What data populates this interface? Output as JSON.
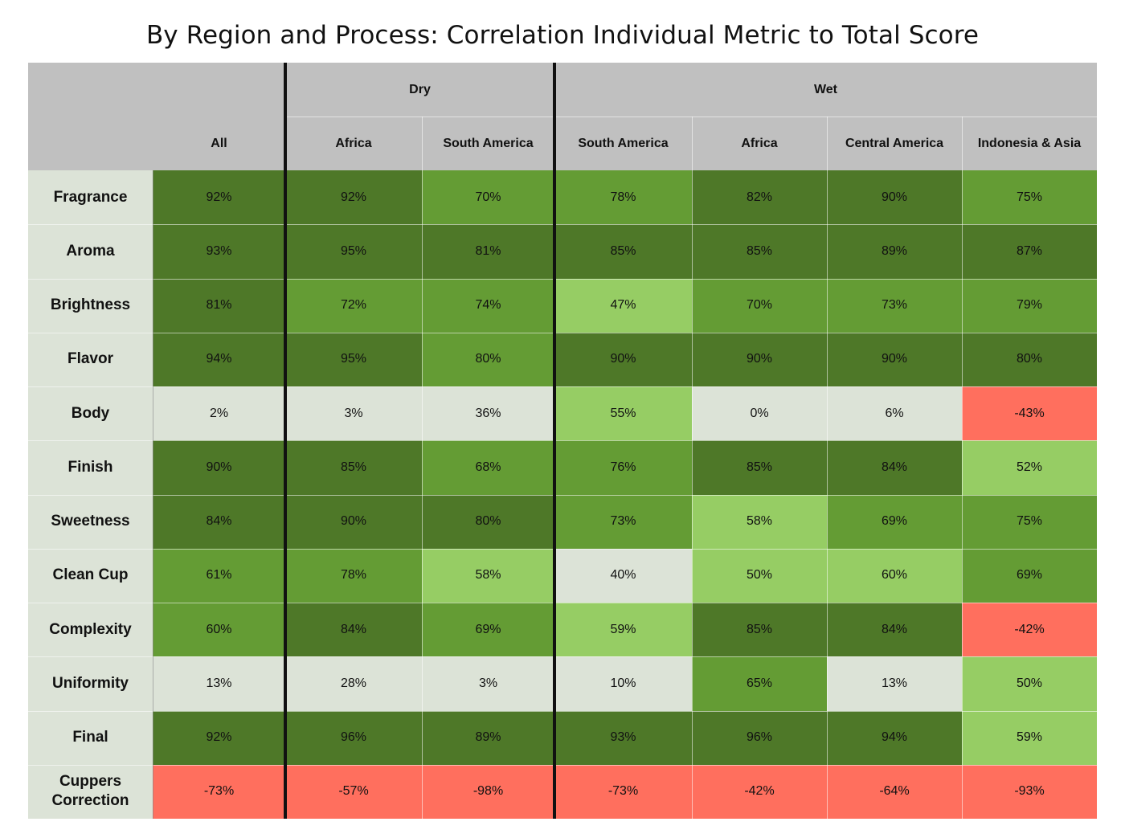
{
  "chart_data": {
    "type": "table",
    "title": "By Region and Process: Correlation Individual Metric to Total Score",
    "column_groups": [
      {
        "label": "",
        "span": 1
      },
      {
        "label": "Dry",
        "span": 2
      },
      {
        "label": "Wet",
        "span": 4
      }
    ],
    "columns": [
      "All",
      "Africa",
      "South America",
      "South America",
      "Africa",
      "Central America",
      "Indonesia & Asia"
    ],
    "rows": [
      {
        "label": "Fragrance",
        "values": [
          "92%",
          "92%",
          "70%",
          "78%",
          "82%",
          "90%",
          "75%"
        ]
      },
      {
        "label": "Aroma",
        "values": [
          "93%",
          "95%",
          "81%",
          "85%",
          "85%",
          "89%",
          "87%"
        ]
      },
      {
        "label": "Brightness",
        "values": [
          "81%",
          "72%",
          "74%",
          "47%",
          "70%",
          "73%",
          "79%"
        ]
      },
      {
        "label": "Flavor",
        "values": [
          "94%",
          "95%",
          "80%",
          "90%",
          "90%",
          "90%",
          "80%"
        ]
      },
      {
        "label": "Body",
        "values": [
          "2%",
          "3%",
          "36%",
          "55%",
          "0%",
          "6%",
          "-43%"
        ]
      },
      {
        "label": "Finish",
        "values": [
          "90%",
          "85%",
          "68%",
          "76%",
          "85%",
          "84%",
          "52%"
        ]
      },
      {
        "label": "Sweetness",
        "values": [
          "84%",
          "90%",
          "80%",
          "73%",
          "58%",
          "69%",
          "75%"
        ]
      },
      {
        "label": "Clean Cup",
        "values": [
          "61%",
          "78%",
          "58%",
          "40%",
          "50%",
          "60%",
          "69%"
        ]
      },
      {
        "label": "Complexity",
        "values": [
          "60%",
          "84%",
          "69%",
          "59%",
          "85%",
          "84%",
          "-42%"
        ]
      },
      {
        "label": "Uniformity",
        "values": [
          "13%",
          "28%",
          "3%",
          "10%",
          "65%",
          "13%",
          "50%"
        ]
      },
      {
        "label": "Final",
        "values": [
          "92%",
          "96%",
          "89%",
          "93%",
          "96%",
          "94%",
          "59%"
        ]
      },
      {
        "label": "Cuppers Correction",
        "values": [
          "-73%",
          "-57%",
          "-98%",
          "-73%",
          "-42%",
          "-64%",
          "-93%"
        ]
      }
    ],
    "cell_shades": [
      [
        "dark",
        "dark",
        "mid",
        "mid",
        "dark",
        "dark",
        "mid"
      ],
      [
        "dark",
        "dark",
        "dark",
        "dark",
        "dark",
        "dark",
        "dark"
      ],
      [
        "dark",
        "mid",
        "mid",
        "light",
        "mid",
        "mid",
        "mid"
      ],
      [
        "dark",
        "dark",
        "mid",
        "dark",
        "dark",
        "dark",
        "dark"
      ],
      [
        "pale",
        "pale",
        "pale",
        "light",
        "pale",
        "pale",
        "red"
      ],
      [
        "dark",
        "dark",
        "mid",
        "mid",
        "dark",
        "dark",
        "light"
      ],
      [
        "dark",
        "dark",
        "dark",
        "mid",
        "light",
        "mid",
        "mid"
      ],
      [
        "mid",
        "mid",
        "light",
        "pale",
        "light",
        "light",
        "mid"
      ],
      [
        "mid",
        "dark",
        "mid",
        "light",
        "dark",
        "dark",
        "red"
      ],
      [
        "pale",
        "pale",
        "pale",
        "pale",
        "mid",
        "pale",
        "light"
      ],
      [
        "dark",
        "dark",
        "dark",
        "dark",
        "dark",
        "dark",
        "light"
      ],
      [
        "red",
        "red",
        "red",
        "red",
        "red",
        "red",
        "red"
      ]
    ],
    "colors": {
      "dark": "#4e7828",
      "mid": "#649c34",
      "light": "#96cd64",
      "pale": "#dce3d7",
      "red": "#ff6f5e",
      "header": "#c0c0c0",
      "row_label": "#dce3d7"
    }
  }
}
